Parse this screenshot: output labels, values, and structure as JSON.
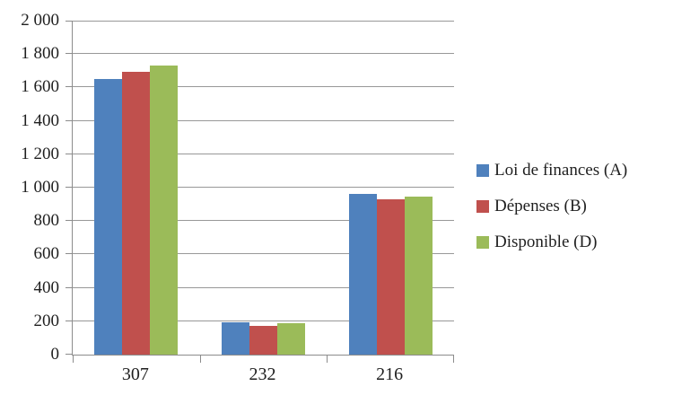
{
  "chart_data": {
    "type": "bar",
    "title": "",
    "xlabel": "",
    "ylabel": "",
    "categories": [
      "307",
      "232",
      "216"
    ],
    "series": [
      {
        "name": "Loi de finances (A)",
        "color": "#4F81BD",
        "values": [
          1650,
          195,
          960
        ]
      },
      {
        "name": "Dépenses (B)",
        "color": "#C0504D",
        "values": [
          1695,
          175,
          930
        ]
      },
      {
        "name": "Disponible (D)",
        "color": "#9BBB59",
        "values": [
          1730,
          190,
          945
        ]
      }
    ],
    "y_axis": {
      "min": 0,
      "max": 2000,
      "step": 200,
      "tick_labels": [
        "0",
        "200",
        "400",
        "600",
        "800",
        "1 000",
        "1 200",
        "1 400",
        "1 600",
        "1 800",
        "2 000"
      ]
    },
    "grid": true,
    "legend_position": "right"
  },
  "colors": {
    "background": "#ffffff",
    "axis": "#8c8c8c",
    "gridline": "#989898",
    "text": "#1f1f1f",
    "series_blue": "#4F81BD",
    "series_red": "#C0504D",
    "series_green": "#9BBB59"
  }
}
